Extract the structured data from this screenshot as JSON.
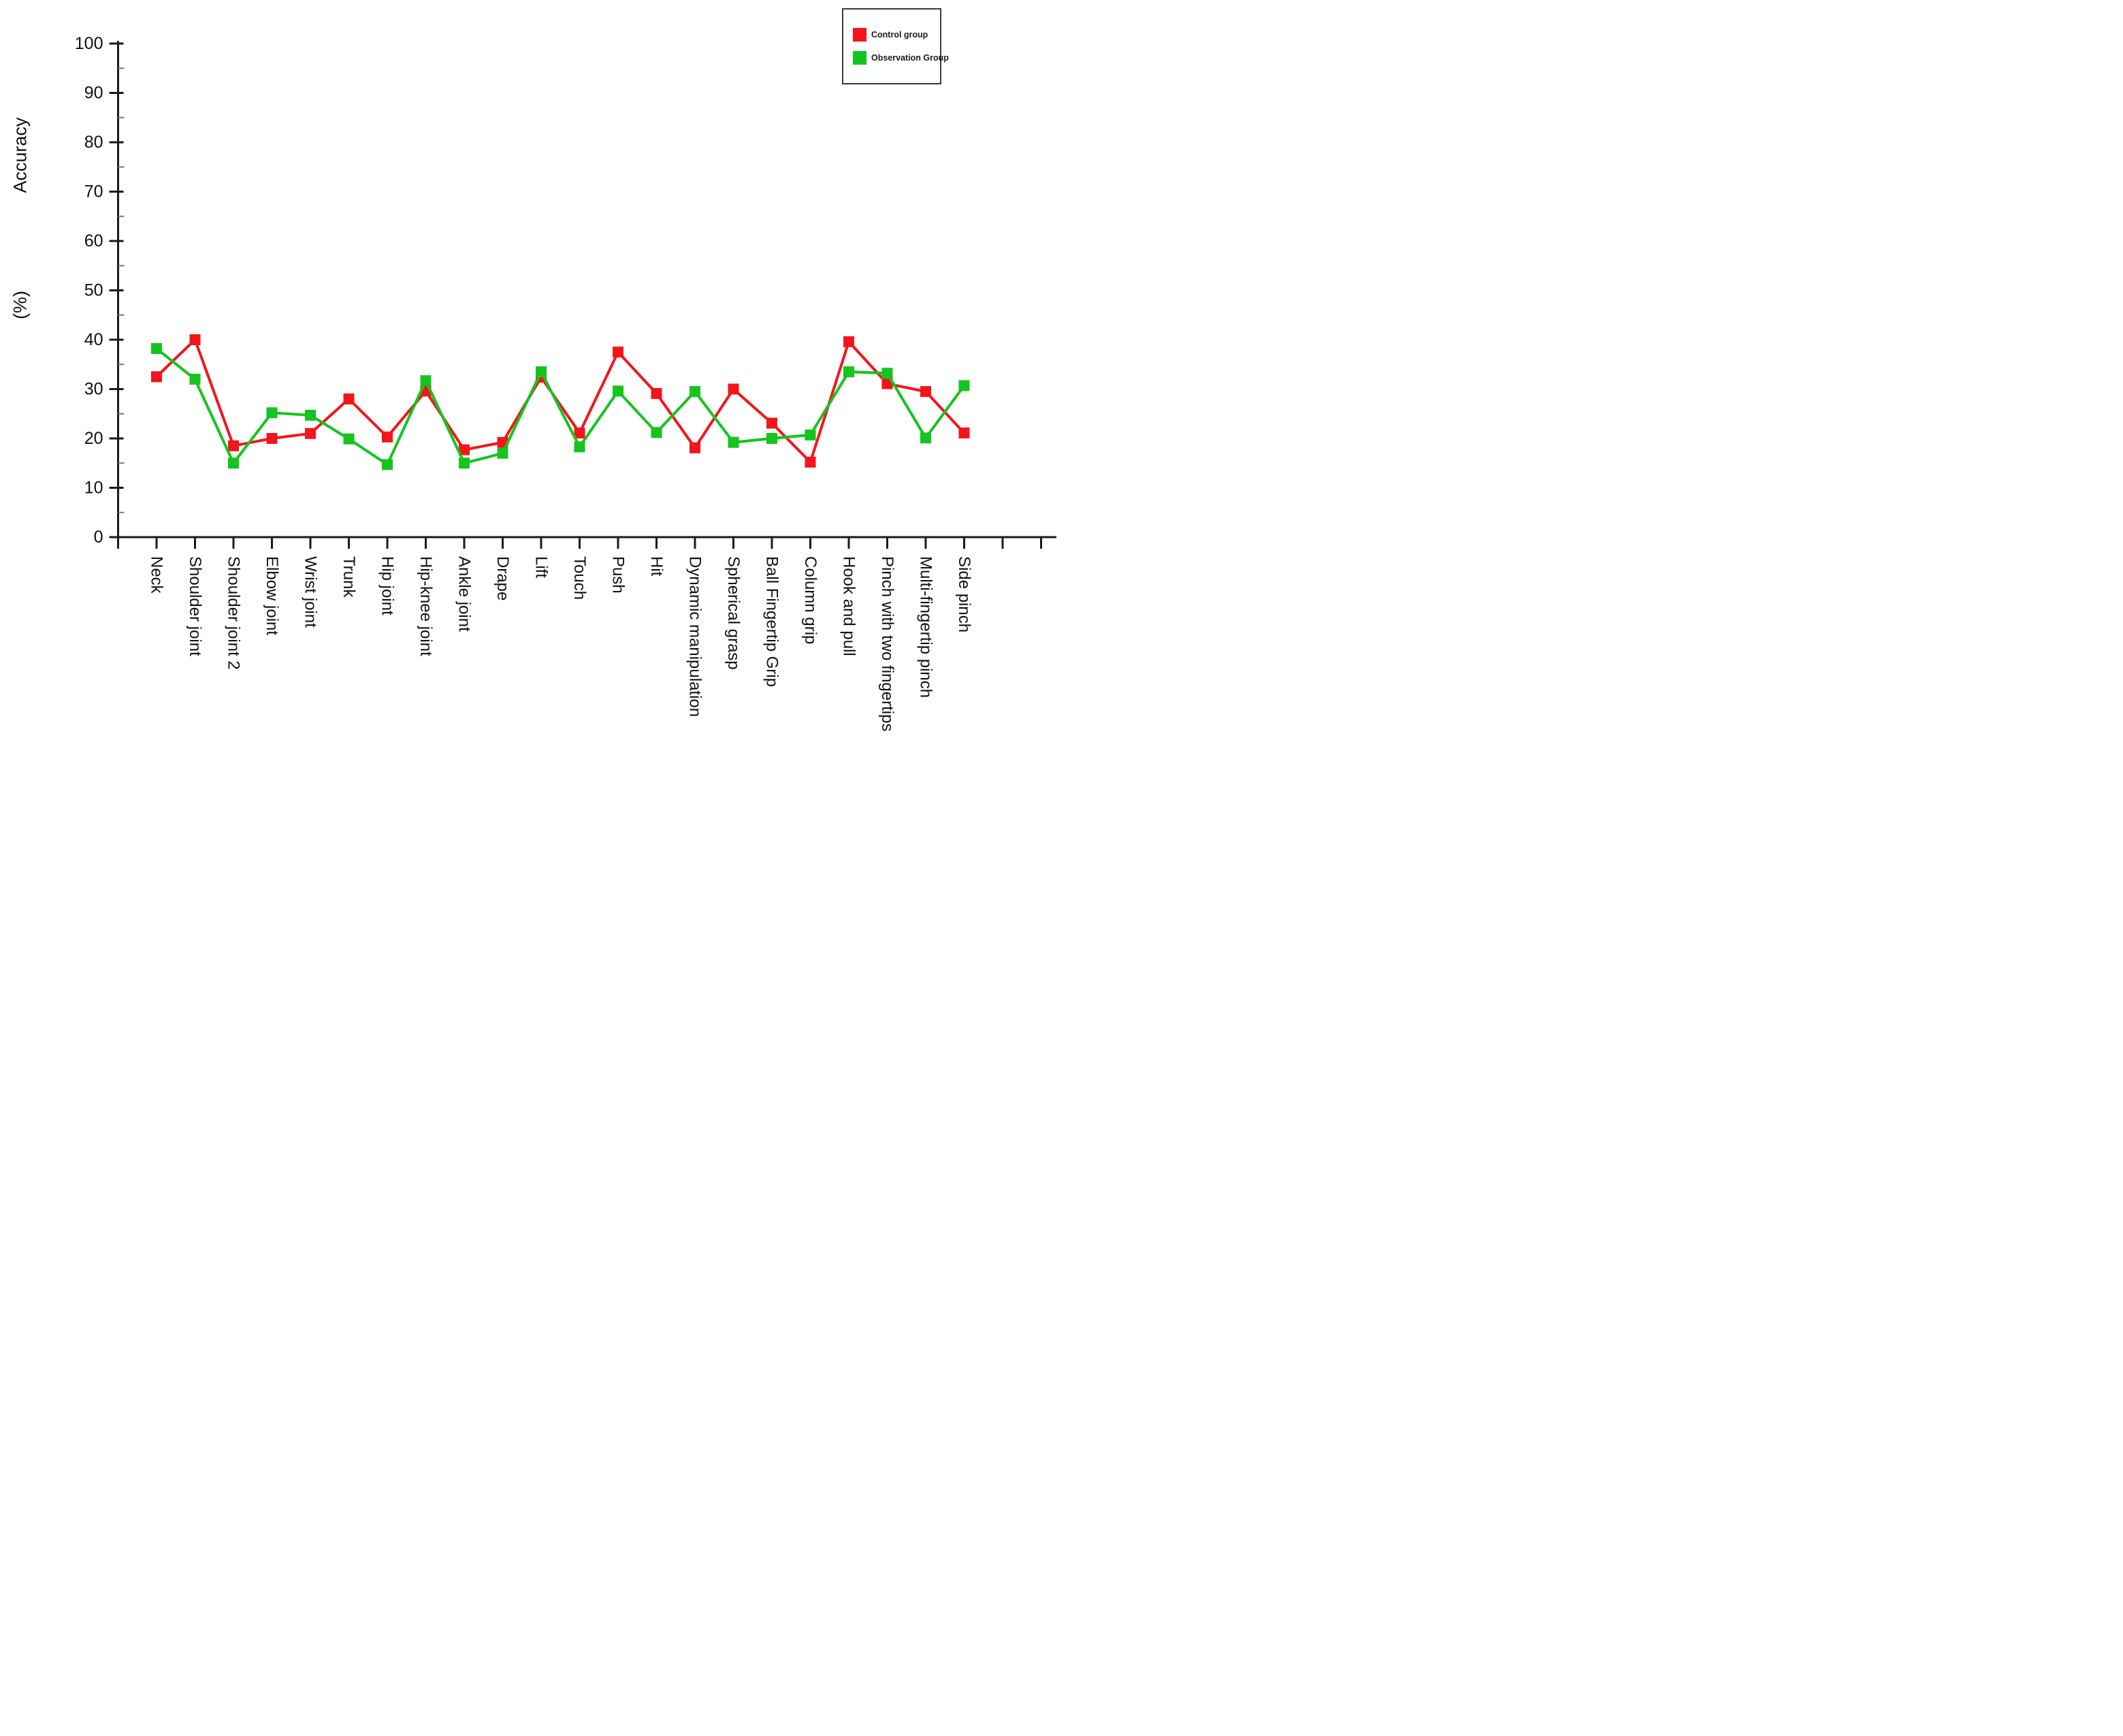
{
  "figure": {
    "background": "#ffffff"
  },
  "colors": {
    "control": "#f3151b",
    "observation": "#15c41e",
    "axis": "#1a1a1a"
  },
  "y_axis": {
    "label_primary": "Accuracy",
    "label_unit": "(%)",
    "min": 0,
    "max": 100,
    "major_step": 10,
    "minor_step": 5,
    "tick_labels": [
      "0",
      "10",
      "20",
      "30",
      "40",
      "50",
      "60",
      "70",
      "80",
      "90",
      "100"
    ]
  },
  "legend": {
    "items": [
      {
        "label": "Control group",
        "color": "#f3151b"
      },
      {
        "label": "Observation Group",
        "color": "#15c41e"
      }
    ]
  },
  "chart_data": {
    "type": "line",
    "title": "",
    "xlabel": "",
    "ylabel": "(%) Accuracy",
    "ylim": [
      0,
      100
    ],
    "grid": false,
    "legend_position": "top-right",
    "marker": "square",
    "categories": [
      "Neck",
      "Shoulder joint",
      "Shoulder joint 2",
      "Elbow joint",
      "Wrist joint",
      "Trunk",
      "Hip joint",
      "Hip-knee joint",
      "Ankle joint",
      "Drape",
      "Lift",
      "Touch",
      "Push",
      "Hit",
      "Dynamic manipulation",
      "Spherical grasp",
      "Ball Fingertip Grip",
      "Column grip",
      "Hook and pull",
      "Pinch with two fingertips",
      "Multi-fingertip pinch",
      "Side pinch"
    ],
    "series": [
      {
        "name": "Control group",
        "color": "#f3151b",
        "values": [
          32.5,
          40.0,
          18.5,
          20.0,
          21.0,
          28.0,
          20.3,
          29.6,
          17.7,
          19.2,
          32.4,
          21.1,
          37.5,
          29.1,
          18.1,
          30.0,
          23.1,
          15.2,
          39.6,
          31.1,
          29.5,
          21.1
        ]
      },
      {
        "name": "Observation Group",
        "color": "#15c41e",
        "values": [
          38.2,
          32.0,
          15.0,
          25.2,
          24.7,
          19.9,
          14.7,
          31.7,
          15.0,
          17.0,
          33.5,
          18.3,
          29.6,
          21.2,
          29.5,
          19.2,
          20.0,
          20.7,
          33.5,
          33.2,
          20.1,
          30.7
        ]
      }
    ]
  }
}
